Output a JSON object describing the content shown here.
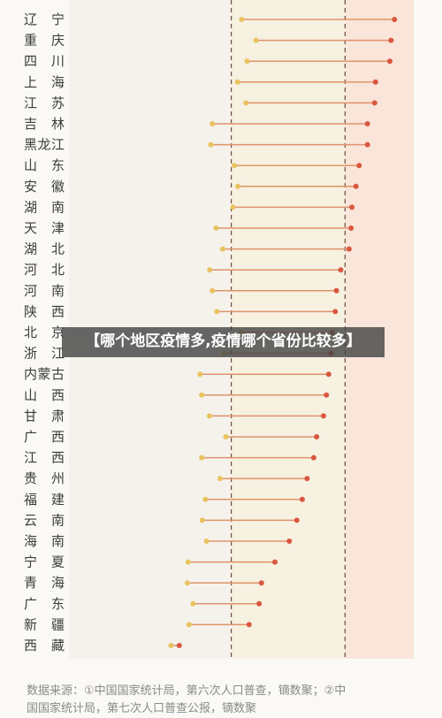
{
  "chart_data": {
    "type": "dumbbell",
    "categories": [
      "辽　宁",
      "重　庆",
      "四　川",
      "上　海",
      "江　苏",
      "吉　林",
      "黑龙江",
      "山　东",
      "安　徽",
      "湖　南",
      "天　津",
      "湖　北",
      "河　北",
      "河　南",
      "陕　西",
      "北　京",
      "浙　江",
      "内蒙古",
      "山　西",
      "甘　肃",
      "广　西",
      "江　西",
      "贵　州",
      "福　建",
      "云　南",
      "海　南",
      "宁　夏",
      "青　海",
      "广　东",
      "新　疆",
      "西　藏"
    ],
    "series": [
      {
        "values": [
          0.601,
          0.651,
          0.62,
          0.587,
          0.616,
          0.499,
          0.494,
          0.576,
          0.588,
          0.571,
          0.512,
          0.535,
          0.49,
          0.499,
          0.515,
          0.599,
          0.54,
          0.456,
          0.462,
          0.489,
          0.546,
          0.462,
          0.526,
          0.475,
          0.464,
          0.479,
          0.415,
          0.412,
          0.432,
          0.418,
          0.355
        ]
      },
      {
        "values": [
          1.133,
          1.121,
          1.117,
          1.067,
          1.064,
          1.039,
          1.039,
          1.01,
          0.999,
          0.985,
          0.982,
          0.975,
          0.946,
          0.931,
          0.927,
          0.917,
          0.912,
          0.904,
          0.896,
          0.886,
          0.862,
          0.852,
          0.829,
          0.812,
          0.793,
          0.767,
          0.717,
          0.67,
          0.662,
          0.627,
          0.384
        ]
      }
    ],
    "reference_lines": [
      0.565,
      0.961
    ],
    "xlim": [
      0,
      1.2
    ]
  },
  "overlay": {
    "caption": "【哪个地区疫情多,疫情哪个省份比较多】"
  },
  "footer": {
    "source_line1": "数据来源：①中国国家统计局，第六次人口普查，镝数聚；②中",
    "source_line2": "国国家统计局，第七次人口普查公报，镝数聚"
  },
  "colors": {
    "start_dot": "#e8c35f",
    "end_dot": "#d9573f",
    "connector": "#e0936a",
    "band_left": "#f5f2ec",
    "band_mid": "#f6f1e1",
    "band_right": "#f9e5d9",
    "ref_line": "#6b4a3a"
  }
}
